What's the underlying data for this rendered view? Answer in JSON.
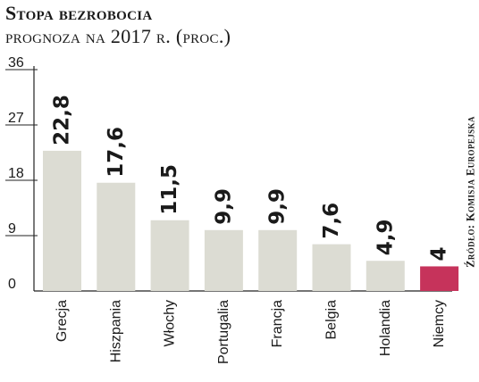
{
  "header": {
    "title": "Stopa bezrobocia",
    "subtitle": "prognoza na 2017 r. (proc.)"
  },
  "source": "Źródło: Komisja Europejska",
  "colors": {
    "bar": "#dcdcd3",
    "highlight": "#c6335b",
    "grid": "#222222",
    "text": "#1a1a1a"
  },
  "chart_data": {
    "type": "bar",
    "categories": [
      "Grecja",
      "Hiszpania",
      "Włochy",
      "Portugalia",
      "Francja",
      "Belgia",
      "Holandia",
      "Niemcy"
    ],
    "values": [
      22.8,
      17.6,
      11.5,
      9.9,
      9.9,
      7.6,
      4.9,
      4
    ],
    "value_labels": [
      "22,8",
      "17,6",
      "11,5",
      "9,9",
      "9,9",
      "7,6",
      "4,9",
      "4"
    ],
    "highlight_category": "Niemcy",
    "y_ticks": [
      0,
      9,
      18,
      27,
      36
    ],
    "ylim": [
      0,
      36
    ],
    "grid": true,
    "legend": "none"
  }
}
